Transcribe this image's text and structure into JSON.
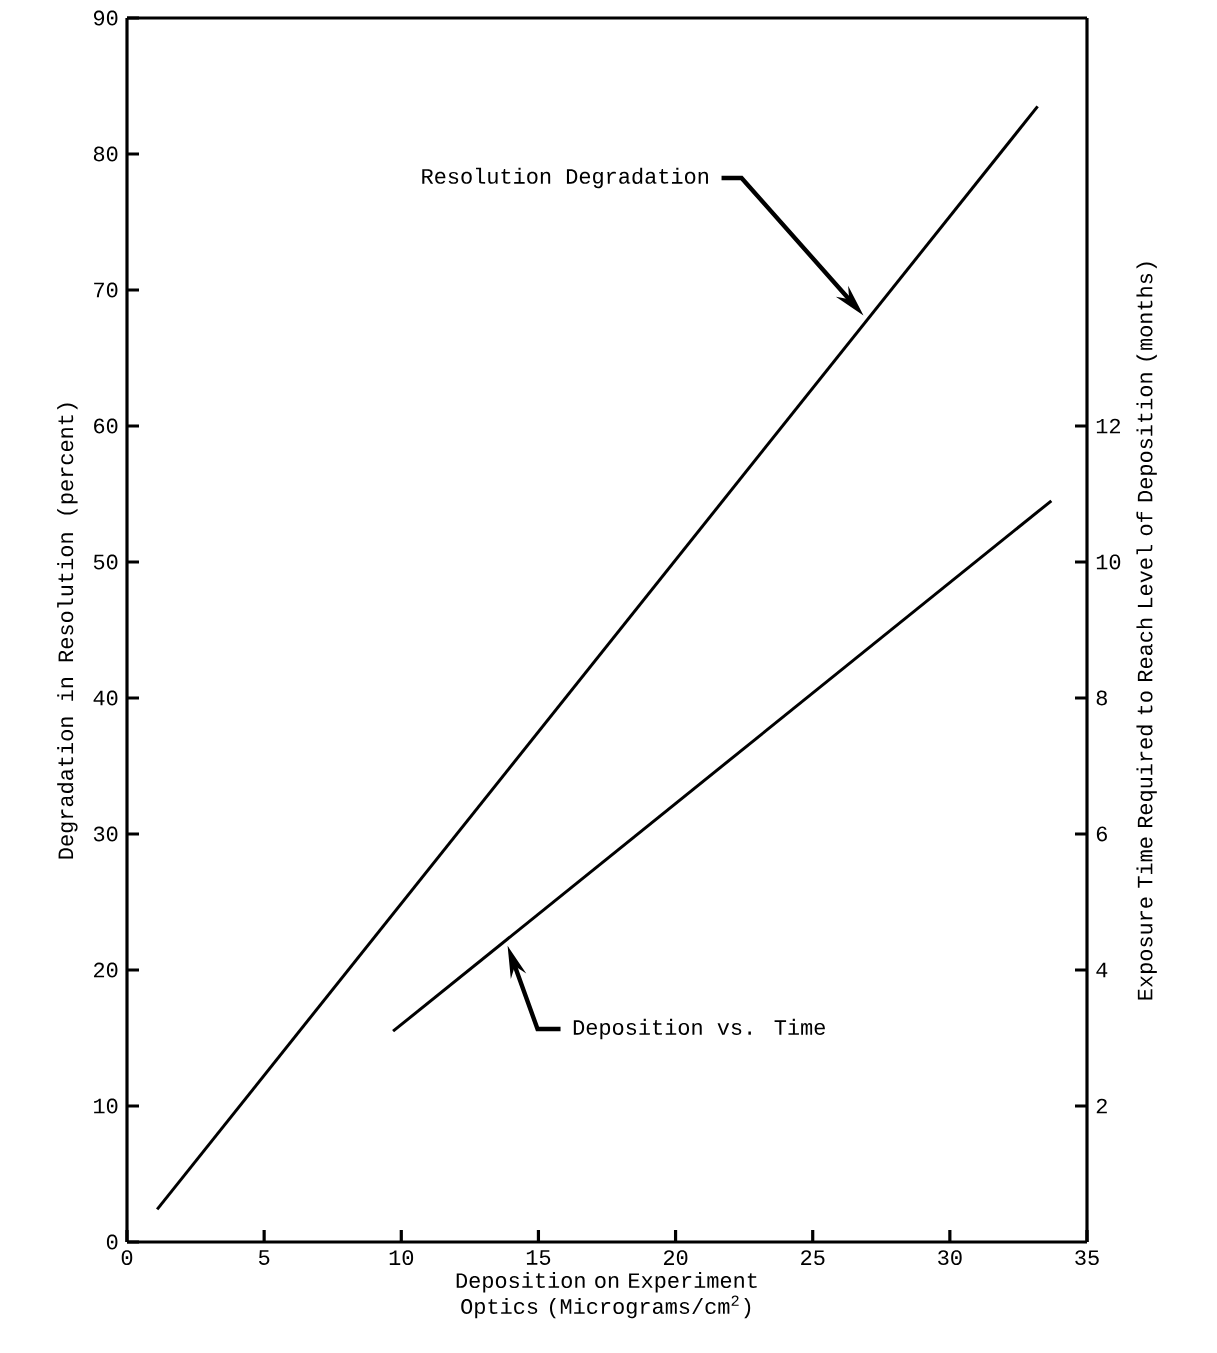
{
  "chart_data": {
    "type": "line",
    "xlabel": "Deposition on Experiment Optics (Micrograms/cm$^{2}$)",
    "ylabel": "Degradation in Resolution (percent)",
    "y2label": "Exposure Time Required to Reach Level of Deposition (months)",
    "xlim": [
      0,
      35
    ],
    "xticks": [
      0,
      5,
      10,
      15,
      20,
      25,
      30,
      35
    ],
    "ylim": [
      0,
      90
    ],
    "yticks": [
      0,
      10,
      20,
      30,
      40,
      50,
      60,
      70,
      80,
      90
    ],
    "y2lim": [
      0,
      18
    ],
    "y2ticks": [
      2,
      4,
      6,
      8,
      10,
      12
    ],
    "series": [
      {
        "color": "#000000",
        "x": [
          1.1,
          33.2
        ],
        "values": [
          2.4,
          83.5
        ]
      },
      {
        "color": "#000000",
        "axis": "y2",
        "x": [
          9.7,
          33.7
        ],
        "values": [
          3.1,
          10.9
        ]
      }
    ],
    "annotations": [
      "Resolution Degradation",
      "Deposition vs. Time"
    ]
  }
}
